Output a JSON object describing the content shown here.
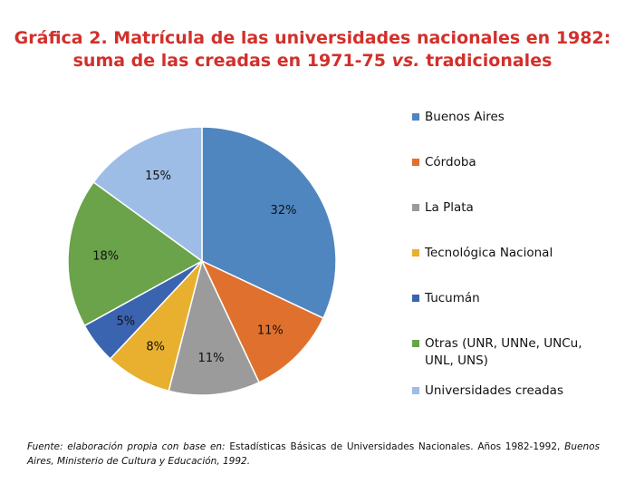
{
  "title": {
    "line1": "Gráfica 2. Matrícula de las universidades nacionales en 1982:",
    "line2_a": "suma de las creadas en 1971-75 ",
    "line2_vs": "vs.",
    "line2_b": " tradicionales"
  },
  "chart_data": {
    "type": "pie",
    "title": "Gráfica 2. Matrícula de las universidades nacionales en 1982: suma de las creadas en 1971-75 vs. tradicionales",
    "legend_position": "right",
    "slices": [
      {
        "label": "Buenos Aires",
        "value": 32,
        "display": "32%",
        "color": "#4f86c0"
      },
      {
        "label": "Córdoba",
        "value": 11,
        "display": "11%",
        "color": "#e0702e"
      },
      {
        "label": "La Plata",
        "value": 11,
        "display": "11%",
        "color": "#9b9b9b"
      },
      {
        "label": "Tecnológica Nacional",
        "value": 8,
        "display": "8%",
        "color": "#e8b02e"
      },
      {
        "label": "Tucumán",
        "value": 5,
        "display": "5%",
        "color": "#3a63b0"
      },
      {
        "label": "Otras (UNR, UNNe,  UNCu, UNL, UNS)",
        "value": 18,
        "display": "18%",
        "color": "#6aa34a"
      },
      {
        "label": "Universidades creadas",
        "value": 15,
        "display": "15%",
        "color": "#9dbde6"
      }
    ]
  },
  "source": {
    "prefix": "Fuente: elaboración propia con base en:",
    "text": " Estadísticas Básicas de Universidades Nacionales. Años 1982-1992, ",
    "place": "Buenos Aires, Ministerio de Cultura y Educación, 1992."
  }
}
